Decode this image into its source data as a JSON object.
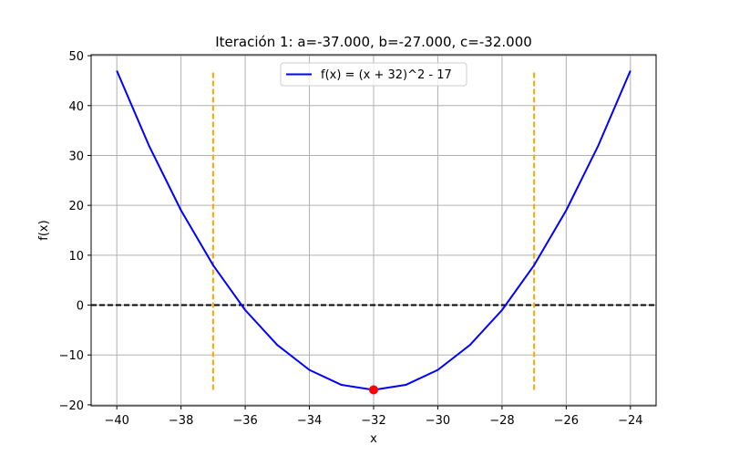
{
  "chart_data": {
    "type": "line",
    "title": "Iteración 1: a=-37.000, b=-27.000, c=-32.000",
    "xlabel": "x",
    "ylabel": "f(x)",
    "xlim": [
      -40.8,
      -23.2
    ],
    "ylim": [
      -20.2,
      50.2
    ],
    "x_ticks": [
      -40,
      -38,
      -36,
      -34,
      -32,
      -30,
      -28,
      -26,
      -24
    ],
    "y_ticks": [
      -20,
      -10,
      0,
      10,
      20,
      30,
      40,
      50
    ],
    "x_tick_labels": [
      "−40",
      "−38",
      "−36",
      "−34",
      "−32",
      "−30",
      "−28",
      "−26",
      "−24"
    ],
    "y_tick_labels": [
      "−20",
      "−10",
      "0",
      "10",
      "20",
      "30",
      "40",
      "50"
    ],
    "grid": true,
    "legend_position": "top-center",
    "series": [
      {
        "name": "f(x) = (x + 32)^2 - 17",
        "color": "#0000ff",
        "x": [
          -40,
          -39,
          -38,
          -37,
          -36,
          -35,
          -34,
          -33,
          -32,
          -31,
          -30,
          -29,
          -28,
          -27,
          -26,
          -25,
          -24
        ],
        "y": [
          47,
          32,
          19,
          8,
          -1,
          -8,
          -13,
          -16,
          -17,
          -16,
          -13,
          -8,
          -1,
          8,
          19,
          32,
          47
        ]
      }
    ],
    "reference_lines": [
      {
        "kind": "horizontal",
        "y": 0,
        "color": "#000000",
        "style": "dashed"
      },
      {
        "kind": "vertical",
        "x": -37,
        "y_from": -17,
        "y_to": 47,
        "color": "#ffa500",
        "style": "dashed"
      },
      {
        "kind": "vertical",
        "x": -27,
        "y_from": -17,
        "y_to": 47,
        "color": "#ffa500",
        "style": "dashed"
      }
    ],
    "points": [
      {
        "x": -32,
        "y": -17,
        "color": "#ff0000"
      }
    ]
  }
}
